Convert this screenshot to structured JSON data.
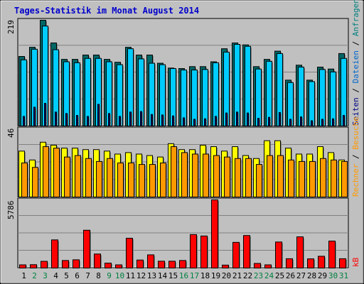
{
  "title": "Tages-Statistik im Monat August 2014",
  "colors": {
    "background": "#c0c0c0",
    "title": "#0000cc",
    "anfragen": "#006666",
    "dateien": "#00ccff",
    "seiten": "#000080",
    "rechner": "#ffff00",
    "besuche": "#ff9900",
    "kb": "#ff0000",
    "weekend_label": "#008040"
  },
  "right_labels": {
    "anfragen": "Anfragen",
    "dateien": "Dateien",
    "seiten": "Seiten",
    "besuche": "Besuche",
    "rechner": "Rechner",
    "kb": "kB",
    "sep": " / "
  },
  "chart_data": [
    {
      "type": "bar",
      "panel": "hits",
      "ymax_label": "219",
      "ylim": [
        0,
        219
      ],
      "categories": [
        "1",
        "2",
        "3",
        "4",
        "5",
        "6",
        "7",
        "8",
        "9",
        "10",
        "11",
        "12",
        "13",
        "14",
        "15",
        "16",
        "17",
        "18",
        "19",
        "20",
        "21",
        "22",
        "23",
        "24",
        "25",
        "26",
        "27",
        "28",
        "29",
        "30",
        "31"
      ],
      "series": [
        {
          "name": "Anfragen",
          "values": [
            144,
            163,
            219,
            172,
            138,
            138,
            147,
            147,
            138,
            132,
            163,
            147,
            147,
            130,
            120,
            119,
            123,
            123,
            133,
            160,
            172,
            168,
            123,
            138,
            155,
            95,
            126,
            95,
            122,
            118,
            150
          ]
        },
        {
          "name": "Dateien",
          "values": [
            137,
            159,
            207,
            158,
            133,
            131,
            140,
            140,
            133,
            127,
            160,
            139,
            130,
            127,
            119,
            116,
            116,
            117,
            131,
            153,
            169,
            165,
            118,
            134,
            150,
            90,
            122,
            92,
            117,
            112,
            140
          ]
        },
        {
          "name": "Seiten",
          "values": [
            20,
            39,
            47,
            29,
            26,
            22,
            20,
            45,
            26,
            20,
            29,
            30,
            24,
            23,
            21,
            17,
            14,
            15,
            20,
            27,
            29,
            27,
            16,
            18,
            28,
            14,
            19,
            11,
            14,
            15,
            22
          ]
        }
      ]
    },
    {
      "type": "bar",
      "panel": "visits",
      "ymax_label": "46",
      "ylim": [
        0,
        46
      ],
      "categories": [
        "1",
        "2",
        "3",
        "4",
        "5",
        "6",
        "7",
        "8",
        "9",
        "10",
        "11",
        "12",
        "13",
        "14",
        "15",
        "16",
        "17",
        "18",
        "19",
        "20",
        "21",
        "22",
        "23",
        "24",
        "25",
        "26",
        "27",
        "28",
        "29",
        "30",
        "31"
      ],
      "series": [
        {
          "name": "Rechner",
          "values": [
            31,
            25,
            37,
            35,
            33,
            33,
            32,
            32,
            31,
            29,
            30,
            29,
            28,
            27,
            36,
            32,
            32,
            35,
            34,
            31,
            34,
            28,
            26,
            38,
            38,
            33,
            29,
            29,
            34,
            30,
            25
          ]
        },
        {
          "name": "Besuche",
          "values": [
            23,
            20,
            34,
            33,
            27,
            28,
            26,
            24,
            26,
            23,
            23,
            22,
            22,
            23,
            34,
            30,
            29,
            29,
            28,
            27,
            26,
            26,
            22,
            28,
            28,
            25,
            24,
            24,
            26,
            25,
            24
          ]
        }
      ]
    },
    {
      "type": "bar",
      "panel": "kbytes",
      "ymax_label": "5786",
      "ylim": [
        0,
        5786
      ],
      "categories": [
        "1",
        "2",
        "3",
        "4",
        "5",
        "6",
        "7",
        "8",
        "9",
        "10",
        "11",
        "12",
        "13",
        "14",
        "15",
        "16",
        "17",
        "18",
        "19",
        "20",
        "21",
        "22",
        "23",
        "24",
        "25",
        "26",
        "27",
        "28",
        "29",
        "30",
        "31"
      ],
      "series": [
        {
          "name": "kB",
          "values": [
            270,
            285,
            570,
            2390,
            640,
            700,
            3210,
            1190,
            420,
            270,
            2530,
            680,
            1120,
            580,
            580,
            640,
            2840,
            2720,
            5786,
            250,
            2180,
            2760,
            390,
            270,
            2210,
            790,
            2650,
            780,
            1000,
            2290,
            790
          ]
        }
      ]
    }
  ],
  "x_labels": [
    {
      "t": "1",
      "w": false
    },
    {
      "t": "2",
      "w": true
    },
    {
      "t": "3",
      "w": true
    },
    {
      "t": "4",
      "w": false
    },
    {
      "t": "5",
      "w": false
    },
    {
      "t": "6",
      "w": false
    },
    {
      "t": "7",
      "w": false
    },
    {
      "t": "8",
      "w": false
    },
    {
      "t": "9",
      "w": true
    },
    {
      "t": "10",
      "w": true
    },
    {
      "t": "11",
      "w": false
    },
    {
      "t": "12",
      "w": false
    },
    {
      "t": "13",
      "w": false
    },
    {
      "t": "14",
      "w": false
    },
    {
      "t": "15",
      "w": false
    },
    {
      "t": "16",
      "w": true
    },
    {
      "t": "17",
      "w": true
    },
    {
      "t": "18",
      "w": false
    },
    {
      "t": "19",
      "w": false
    },
    {
      "t": "20",
      "w": false
    },
    {
      "t": "21",
      "w": false
    },
    {
      "t": "22",
      "w": false
    },
    {
      "t": "23",
      "w": true
    },
    {
      "t": "24",
      "w": true
    },
    {
      "t": "25",
      "w": false
    },
    {
      "t": "26",
      "w": false
    },
    {
      "t": "27",
      "w": false
    },
    {
      "t": "28",
      "w": false
    },
    {
      "t": "29",
      "w": false
    },
    {
      "t": "30",
      "w": true
    },
    {
      "t": "31",
      "w": true
    }
  ]
}
